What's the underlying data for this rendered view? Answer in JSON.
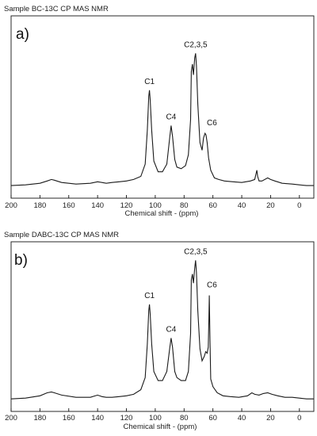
{
  "chart_data": [
    {
      "type": "line",
      "title": "Sample BC-13C CP MAS NMR",
      "panel_label": "a)",
      "xlabel": "Chemical shift - (ppm)",
      "ylabel": "",
      "xlim": [
        200,
        -10
      ],
      "x_reversed": true,
      "x_ticks": [
        200,
        180,
        160,
        140,
        120,
        100,
        80,
        60,
        40,
        20,
        0
      ],
      "grid": false,
      "ylim": [
        0,
        1
      ],
      "peaks": [
        {
          "label": "C1",
          "x": 104
        },
        {
          "label": "C4",
          "x": 89
        },
        {
          "label": "C2,3,5",
          "x": 72
        },
        {
          "label": "C6",
          "x": 64
        }
      ],
      "series": [
        {
          "x": [
            200,
            190,
            180,
            175,
            172,
            170,
            165,
            155,
            145,
            140,
            137,
            134,
            130,
            125,
            120,
            115,
            110,
            107,
            105.5,
            104.5,
            104,
            103.5,
            102.5,
            101,
            98,
            95,
            92,
            90,
            89,
            88,
            86.5,
            85,
            82,
            79,
            77,
            75.5,
            75,
            74.2,
            73.5,
            72.6,
            72,
            71.4,
            70.5,
            69,
            67.5,
            66.5,
            65.5,
            64.8,
            64,
            63,
            61.5,
            59,
            56,
            52,
            46,
            40,
            34,
            31,
            30,
            29.5,
            29,
            28,
            26,
            22,
            20,
            17,
            12,
            5,
            0,
            -5,
            -10
          ],
          "y": [
            0.02,
            0.025,
            0.035,
            0.05,
            0.06,
            0.055,
            0.04,
            0.03,
            0.035,
            0.045,
            0.04,
            0.035,
            0.04,
            0.045,
            0.05,
            0.06,
            0.08,
            0.16,
            0.38,
            0.6,
            0.64,
            0.58,
            0.38,
            0.18,
            0.11,
            0.11,
            0.16,
            0.33,
            0.41,
            0.34,
            0.19,
            0.14,
            0.13,
            0.15,
            0.22,
            0.45,
            0.76,
            0.81,
            0.74,
            0.85,
            0.88,
            0.8,
            0.55,
            0.3,
            0.25,
            0.33,
            0.36,
            0.35,
            0.3,
            0.2,
            0.12,
            0.07,
            0.06,
            0.05,
            0.045,
            0.04,
            0.05,
            0.06,
            0.1,
            0.12,
            0.08,
            0.05,
            0.05,
            0.07,
            0.06,
            0.05,
            0.035,
            0.03,
            0.025,
            0.02,
            0.02
          ]
        }
      ]
    },
    {
      "type": "line",
      "title": "Sample DABC-13C CP MAS NMR",
      "panel_label": "b)",
      "xlabel": "Chemical shift - (ppm)",
      "ylabel": "",
      "xlim": [
        200,
        -10
      ],
      "x_reversed": true,
      "x_ticks": [
        200,
        180,
        160,
        140,
        120,
        100,
        80,
        60,
        40,
        20,
        0
      ],
      "grid": false,
      "ylim": [
        0,
        1
      ],
      "peaks": [
        {
          "label": "C1",
          "x": 104
        },
        {
          "label": "C4",
          "x": 89
        },
        {
          "label": "C2,3,5",
          "x": 72
        },
        {
          "label": "C6",
          "x": 64
        }
      ],
      "series": [
        {
          "x": [
            200,
            190,
            180,
            175,
            172,
            170,
            165,
            155,
            145,
            140,
            137,
            134,
            130,
            125,
            120,
            115,
            110,
            107,
            105.5,
            104.5,
            104,
            103.5,
            102.5,
            101,
            98,
            95,
            92,
            90,
            89,
            88,
            86.5,
            85,
            82,
            79,
            77,
            75.5,
            75,
            74.2,
            73.5,
            72.6,
            72,
            71.4,
            70.5,
            69,
            67.5,
            66,
            65,
            64,
            63.2,
            62.8,
            62.5,
            62,
            61.5,
            60,
            57,
            53,
            48,
            42,
            36,
            33,
            31,
            28,
            25,
            22,
            19,
            15,
            10,
            5,
            0,
            -5,
            -10
          ],
          "y": [
            0.02,
            0.025,
            0.04,
            0.06,
            0.065,
            0.06,
            0.045,
            0.03,
            0.03,
            0.045,
            0.035,
            0.03,
            0.03,
            0.035,
            0.04,
            0.05,
            0.08,
            0.16,
            0.38,
            0.6,
            0.64,
            0.58,
            0.38,
            0.2,
            0.14,
            0.14,
            0.2,
            0.35,
            0.42,
            0.36,
            0.2,
            0.16,
            0.14,
            0.14,
            0.2,
            0.45,
            0.8,
            0.84,
            0.78,
            0.88,
            0.93,
            0.85,
            0.6,
            0.35,
            0.27,
            0.3,
            0.33,
            0.32,
            0.36,
            0.55,
            0.7,
            0.4,
            0.15,
            0.1,
            0.06,
            0.04,
            0.035,
            0.03,
            0.04,
            0.06,
            0.05,
            0.045,
            0.055,
            0.06,
            0.05,
            0.04,
            0.03,
            0.03,
            0.025,
            0.02,
            0.02
          ]
        }
      ]
    }
  ]
}
